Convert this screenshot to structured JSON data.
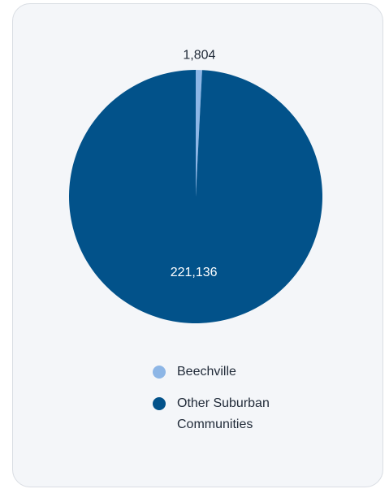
{
  "chart_data": {
    "type": "pie",
    "slices": [
      {
        "name": "Beechville",
        "value": 1804,
        "label": "1,804",
        "color": "#8db6e6"
      },
      {
        "name": "Other Suburban Communities",
        "value": 221136,
        "label": "221,136",
        "color": "#02528a"
      }
    ],
    "legend_position": "bottom"
  }
}
